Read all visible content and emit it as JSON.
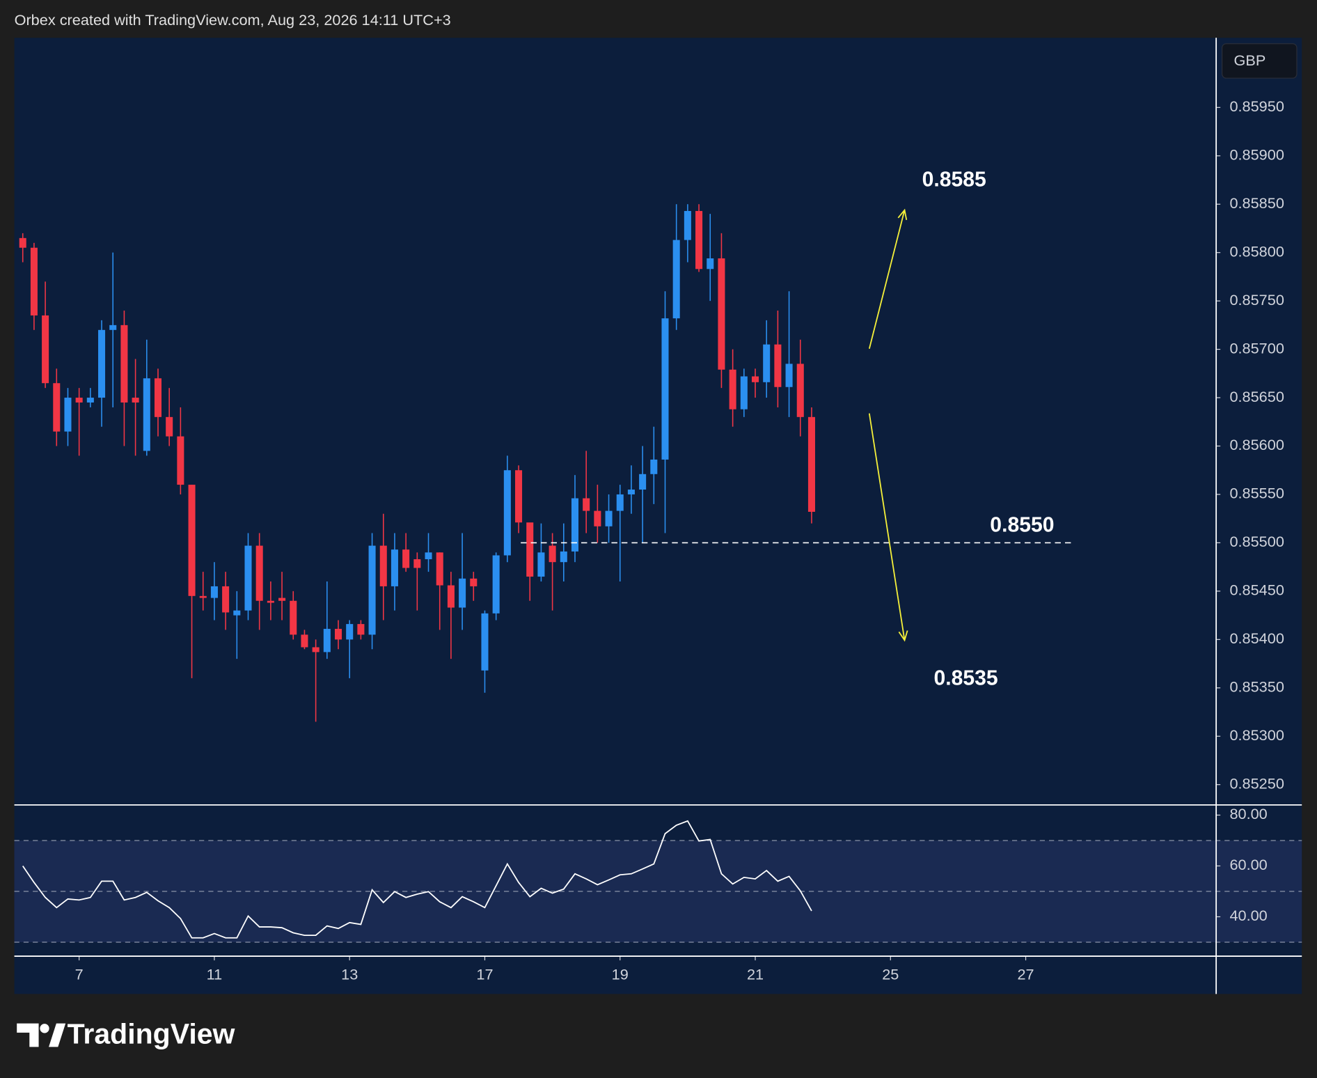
{
  "header": "Orbex created with TradingView.com, Aug 23, 2026 14:11 UTC+3",
  "logo": "TradingView",
  "chart_data": {
    "type": "candlestick",
    "currency": "GBP",
    "up_color": "#2b8ff0",
    "down_color": "#f23645",
    "x": [
      1,
      2,
      3,
      4,
      5,
      6,
      7,
      8,
      9,
      10,
      11,
      12,
      13,
      14,
      15,
      16,
      17,
      18,
      19,
      20,
      21,
      22,
      23,
      24,
      25,
      26,
      27,
      28,
      29,
      30,
      31,
      32,
      33,
      34,
      35,
      36,
      37,
      38,
      39,
      40,
      41,
      42,
      43,
      44,
      45,
      46,
      47,
      48,
      49,
      50,
      51,
      52,
      53,
      54,
      55,
      56,
      57,
      58,
      59,
      60,
      61,
      62,
      63,
      64,
      65,
      66,
      67,
      68,
      69,
      70,
      71
    ],
    "open": [
      0.85815,
      0.85805,
      0.85735,
      0.85665,
      0.85615,
      0.8565,
      0.85645,
      0.8565,
      0.8572,
      0.85725,
      0.8565,
      0.85595,
      0.8567,
      0.8563,
      0.8561,
      0.8556,
      0.85445,
      0.85443,
      0.85455,
      0.85425,
      0.8543,
      0.85497,
      0.8544,
      0.85443,
      0.8544,
      0.85405,
      0.85392,
      0.85387,
      0.85411,
      0.854,
      0.85416,
      0.85405,
      0.85497,
      0.85455,
      0.85493,
      0.85483,
      0.85483,
      0.8549,
      0.85456,
      0.85433,
      0.85463,
      0.85368,
      0.85427,
      0.85487,
      0.85575,
      0.85521,
      0.85465,
      0.85497,
      0.8548,
      0.85491,
      0.85546,
      0.85533,
      0.85517,
      0.85533,
      0.8555,
      0.85555,
      0.85571,
      0.85586,
      0.85732,
      0.85813,
      0.85843,
      0.85783,
      0.85794,
      0.85679,
      0.85638,
      0.85672,
      0.85666,
      0.85705,
      0.85661,
      0.85685,
      0.8563
    ],
    "high": [
      0.8582,
      0.8581,
      0.8577,
      0.8568,
      0.8566,
      0.8566,
      0.8566,
      0.8573,
      0.858,
      0.8574,
      0.8569,
      0.8571,
      0.8568,
      0.8566,
      0.8564,
      0.8556,
      0.8547,
      0.8548,
      0.8547,
      0.8545,
      0.8551,
      0.8551,
      0.8546,
      0.8547,
      0.8545,
      0.8541,
      0.854,
      0.8546,
      0.8542,
      0.8542,
      0.8542,
      0.8551,
      0.8553,
      0.8551,
      0.8551,
      0.8549,
      0.8551,
      0.8549,
      0.8547,
      0.8551,
      0.8547,
      0.8543,
      0.8549,
      0.8559,
      0.8558,
      0.8552,
      0.8552,
      0.8551,
      0.8552,
      0.8557,
      0.85595,
      0.8556,
      0.8555,
      0.8556,
      0.8558,
      0.856,
      0.8562,
      0.8576,
      0.8585,
      0.8585,
      0.8585,
      0.8584,
      0.8582,
      0.857,
      0.8568,
      0.8568,
      0.8573,
      0.8574,
      0.8576,
      0.8571,
      0.8564
    ],
    "low": [
      0.8579,
      0.8572,
      0.8566,
      0.856,
      0.856,
      0.8559,
      0.8564,
      0.8562,
      0.8564,
      0.856,
      0.8559,
      0.8559,
      0.8561,
      0.856,
      0.8555,
      0.8536,
      0.8543,
      0.8542,
      0.8541,
      0.8538,
      0.8542,
      0.8541,
      0.8542,
      0.8542,
      0.854,
      0.8539,
      0.85315,
      0.8538,
      0.8539,
      0.8536,
      0.854,
      0.8539,
      0.8542,
      0.8543,
      0.8547,
      0.8543,
      0.8547,
      0.8541,
      0.8538,
      0.8541,
      0.8544,
      0.85345,
      0.8542,
      0.8548,
      0.8551,
      0.8544,
      0.8546,
      0.8543,
      0.8546,
      0.8548,
      0.8551,
      0.855,
      0.855,
      0.8546,
      0.8553,
      0.855,
      0.8554,
      0.8551,
      0.8572,
      0.8579,
      0.8578,
      0.8575,
      0.8566,
      0.8562,
      0.8563,
      0.8565,
      0.8565,
      0.8564,
      0.8563,
      0.8561,
      0.8552
    ],
    "close": [
      0.85805,
      0.85735,
      0.85665,
      0.85615,
      0.8565,
      0.85645,
      0.8565,
      0.8572,
      0.85725,
      0.85645,
      0.85645,
      0.8567,
      0.8563,
      0.8561,
      0.8556,
      0.85445,
      0.85443,
      0.85455,
      0.85428,
      0.8543,
      0.85497,
      0.8544,
      0.85438,
      0.8544,
      0.85405,
      0.85392,
      0.85387,
      0.85411,
      0.854,
      0.85416,
      0.85405,
      0.85497,
      0.85455,
      0.85493,
      0.85474,
      0.85474,
      0.8549,
      0.85456,
      0.85433,
      0.85463,
      0.85455,
      0.85427,
      0.85487,
      0.85575,
      0.85521,
      0.85465,
      0.8549,
      0.8548,
      0.85491,
      0.85546,
      0.85533,
      0.85517,
      0.85533,
      0.8555,
      0.85555,
      0.85571,
      0.85586,
      0.85732,
      0.85813,
      0.85843,
      0.85783,
      0.85794,
      0.85679,
      0.85638,
      0.85672,
      0.85666,
      0.85705,
      0.85661,
      0.85685,
      0.8563,
      0.85532
    ],
    "xlim": [
      0.25,
      106.9
    ],
    "xticks": [
      {
        "value": 6,
        "label": "7"
      },
      {
        "value": 18,
        "label": "11"
      },
      {
        "value": 30,
        "label": "13"
      },
      {
        "value": 42,
        "label": "17"
      },
      {
        "value": 54,
        "label": "19"
      },
      {
        "value": 66,
        "label": "21"
      },
      {
        "value": 78,
        "label": "25"
      },
      {
        "value": 90,
        "label": "27"
      }
    ],
    "ylim": [
      0.85229,
      0.86022
    ],
    "yticks": [
      {
        "value": 0.8525,
        "label": "0.85250"
      },
      {
        "value": 0.853,
        "label": "0.85300"
      },
      {
        "value": 0.8535,
        "label": "0.85350"
      },
      {
        "value": 0.854,
        "label": "0.85400"
      },
      {
        "value": 0.8545,
        "label": "0.85450"
      },
      {
        "value": 0.855,
        "label": "0.85500"
      },
      {
        "value": 0.8555,
        "label": "0.85550"
      },
      {
        "value": 0.856,
        "label": "0.85600"
      },
      {
        "value": 0.8565,
        "label": "0.85650"
      },
      {
        "value": 0.857,
        "label": "0.85700"
      },
      {
        "value": 0.8575,
        "label": "0.85750"
      },
      {
        "value": 0.858,
        "label": "0.85800"
      },
      {
        "value": 0.8585,
        "label": "0.85850"
      },
      {
        "value": 0.859,
        "label": "0.85900"
      },
      {
        "value": 0.8595,
        "label": "0.85950"
      }
    ],
    "annotations": [
      {
        "value": 0.8585,
        "label": "0.8585"
      },
      {
        "value": 0.855,
        "label": "0.8550"
      },
      {
        "value": 0.8535,
        "label": "0.8535"
      }
    ],
    "indicator": {
      "type": "line",
      "color": "#ffffff",
      "values": [
        60,
        53.5,
        47.6,
        43.6,
        47,
        46.6,
        47.6,
        54,
        54,
        46.6,
        47.6,
        49.6,
        46.3,
        43.6,
        39.3,
        31.7,
        31.7,
        33.4,
        31.7,
        31.7,
        40.3,
        36,
        36,
        35.7,
        33.7,
        32.7,
        32.7,
        36.4,
        35.4,
        37.7,
        37,
        50.6,
        45.6,
        49.9,
        47.6,
        48.9,
        49.9,
        45.9,
        43.6,
        47.9,
        45.9,
        43.6,
        52.2,
        60.8,
        53.5,
        47.9,
        51.2,
        49.3,
        50.9,
        56.9,
        54.9,
        52.6,
        54.5,
        56.5,
        56.9,
        58.8,
        60.8,
        72.7,
        76,
        77.7,
        69.8,
        70.4,
        56.9,
        52.9,
        55.5,
        54.9,
        58.2,
        54,
        55.9,
        50.2,
        42.3
      ],
      "ylim": [
        24.5,
        84
      ],
      "yticks": [
        {
          "value": 40,
          "label": "40.00"
        },
        {
          "value": 60,
          "label": "60.00"
        },
        {
          "value": 80,
          "label": "80.00"
        }
      ],
      "levels": [
        30,
        50,
        70
      ]
    }
  }
}
